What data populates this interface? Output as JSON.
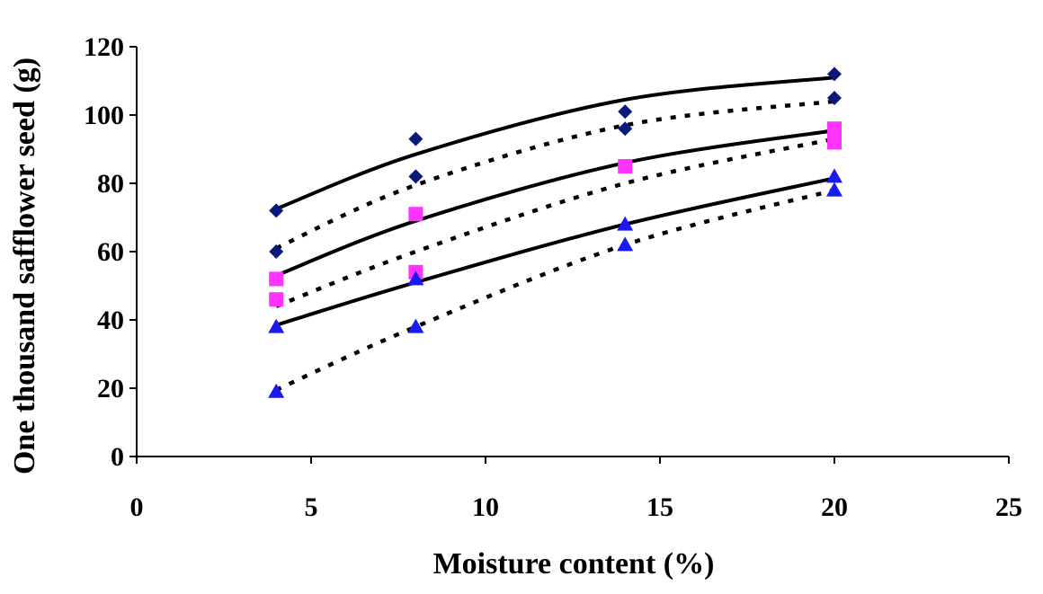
{
  "chart_data": {
    "type": "scatter",
    "title": "",
    "xlabel": "Moisture content (%)",
    "ylabel": "One thousand safflower seed (g)",
    "xlim": [
      0,
      25
    ],
    "ylim": [
      0,
      120
    ],
    "xticks": [
      0,
      5,
      10,
      15,
      20,
      25
    ],
    "yticks": [
      0,
      20,
      40,
      60,
      80,
      100,
      120
    ],
    "grid": false,
    "legend": "none",
    "series": [
      {
        "marker": "diamond",
        "color": "#0a1a7a",
        "points": [
          [
            4,
            72
          ],
          [
            4,
            60
          ],
          [
            8,
            93
          ],
          [
            8,
            82
          ],
          [
            14,
            101
          ],
          [
            14,
            96
          ],
          [
            20,
            112
          ],
          [
            20,
            105
          ]
        ]
      },
      {
        "marker": "square",
        "color": "#ff33ff",
        "points": [
          [
            4,
            52
          ],
          [
            4,
            46
          ],
          [
            8,
            71
          ],
          [
            8,
            54
          ],
          [
            14,
            85
          ],
          [
            20,
            96
          ],
          [
            20,
            92
          ]
        ]
      },
      {
        "marker": "triangle",
        "color": "#1a1aee",
        "points": [
          [
            4,
            38
          ],
          [
            4,
            19
          ],
          [
            8,
            52
          ],
          [
            8,
            38
          ],
          [
            14,
            68
          ],
          [
            14,
            62
          ],
          [
            20,
            82
          ],
          [
            20,
            78
          ]
        ]
      }
    ],
    "trendlines": [
      {
        "style": "solid",
        "color": "#000000",
        "x": [
          4,
          8,
          14,
          20
        ],
        "y": [
          72.5,
          88.5,
          104.5,
          111
        ]
      },
      {
        "style": "dotted",
        "color": "#000000",
        "x": [
          4,
          8,
          14,
          20
        ],
        "y": [
          61,
          79.5,
          97,
          104
        ]
      },
      {
        "style": "solid",
        "color": "#000000",
        "x": [
          4,
          8,
          14,
          20
        ],
        "y": [
          53,
          69,
          86,
          95.5
        ]
      },
      {
        "style": "dotted",
        "color": "#000000",
        "x": [
          4,
          8,
          14,
          20
        ],
        "y": [
          44,
          60,
          80,
          93
        ]
      },
      {
        "style": "solid",
        "color": "#000000",
        "x": [
          4,
          8,
          14,
          20
        ],
        "y": [
          38.5,
          51,
          68,
          81.5
        ]
      },
      {
        "style": "dotted",
        "color": "#000000",
        "x": [
          4,
          8,
          14,
          20
        ],
        "y": [
          19.5,
          38,
          62,
          78
        ]
      }
    ]
  }
}
